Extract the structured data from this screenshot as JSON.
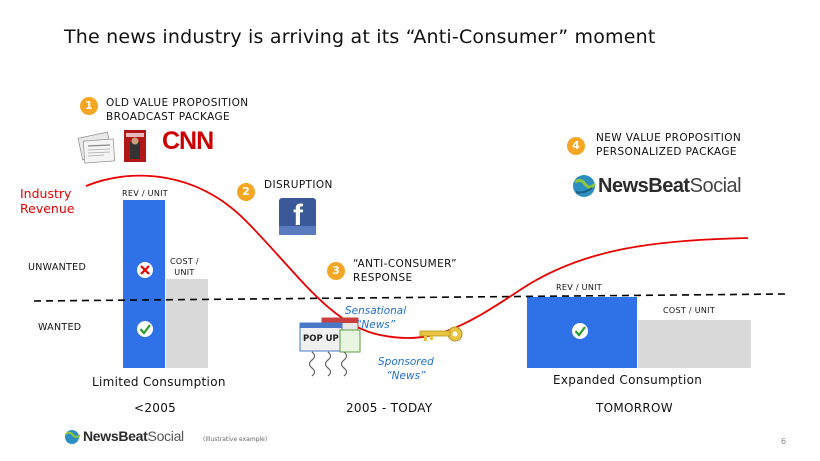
{
  "title": "The news industry is arriving at its “Anti-Consumer” moment",
  "curve_label": [
    "Industry",
    "Revenue"
  ],
  "rows": {
    "unwanted": "UNWANTED",
    "wanted": "WANTED"
  },
  "steps": [
    {
      "num": "1",
      "lines": [
        "OLD VALUE PROPOSITION",
        "BROADCAST PACKAGE"
      ]
    },
    {
      "num": "2",
      "lines": [
        "DISRUPTION"
      ]
    },
    {
      "num": "3",
      "lines": [
        "“ANTI-CONSUMER”",
        "RESPONSE"
      ]
    },
    {
      "num": "4",
      "lines": [
        "NEW VALUE PROPOSITION",
        "PERSONALIZED PACKAGE"
      ]
    }
  ],
  "left_chart": {
    "rev_label": "REV / UNIT",
    "cost_label": [
      "COST /",
      "UNIT"
    ],
    "caption": "Limited Consumption",
    "period": "<2005"
  },
  "middle": {
    "sensational": [
      "Sensational",
      "“News”"
    ],
    "sponsored": [
      "Sponsored",
      "“News”"
    ],
    "popup": "POP UP",
    "period": "2005 - TODAY"
  },
  "right_chart": {
    "rev_label": "REV / UNIT",
    "cost_label": "COST / UNIT",
    "caption": "Expanded Consumption",
    "period": "TOMORROW"
  },
  "logos": {
    "cnn": "CNN",
    "facebook": "f",
    "brand_a": "NewsBeat",
    "brand_b": "Social"
  },
  "footer": {
    "note": "(Illustrative example)",
    "page": "6"
  },
  "colors": {
    "accent": "#f5a623",
    "blue": "#2f72e8",
    "red": "#e60000",
    "gray": "#d9d9d9"
  }
}
